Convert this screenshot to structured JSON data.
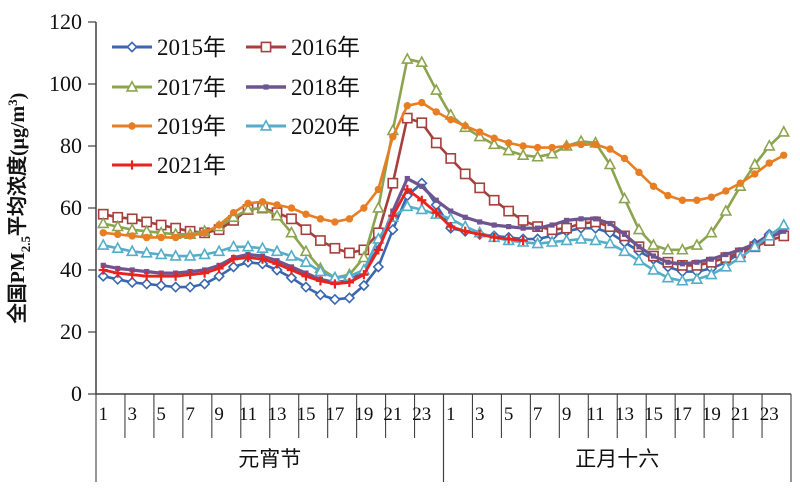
{
  "chart_data": {
    "type": "line",
    "title": "",
    "ylabel": {
      "prefix": "全国PM",
      "sub": "2.5",
      "mid": "平均浓度(μg/m",
      "sup": "3",
      "suffix": ")"
    },
    "ylim": [
      0,
      120
    ],
    "yticks": [
      0,
      20,
      40,
      60,
      80,
      100,
      120
    ],
    "x": {
      "group_size": 24,
      "tick_every": 2,
      "labeled_hours": [
        1,
        3,
        5,
        7,
        9,
        11,
        13,
        15,
        17,
        19,
        21,
        23
      ],
      "groups": [
        "元宵节",
        "正月十六"
      ]
    },
    "legend_position": "top-left-inside",
    "grid": false,
    "axis_color": "#404040",
    "text_color": "#111111",
    "series": [
      {
        "name": "2015年",
        "color": "#3A67AE",
        "marker": "diamond-open",
        "values": [
          38,
          37,
          36,
          35.5,
          35,
          34.5,
          34.5,
          35.5,
          38,
          41,
          42.5,
          42,
          40,
          37.5,
          34.5,
          32,
          30.5,
          31,
          35,
          41,
          53,
          64,
          68,
          61,
          53.5,
          52.5,
          51.5,
          51,
          50.5,
          50,
          50,
          51,
          52.5,
          53.5,
          53.5,
          52,
          49,
          46,
          43.5,
          41,
          39.5,
          39.5,
          40.5,
          42.5,
          45.5,
          48.5,
          51.5,
          53.5
        ]
      },
      {
        "name": "2016年",
        "color": "#A5403D",
        "marker": "square-open",
        "values": [
          58,
          57,
          56.5,
          55.5,
          54.5,
          53.5,
          52.5,
          52,
          53,
          56,
          59.5,
          60,
          58.5,
          56.5,
          53,
          49.5,
          47,
          45.5,
          46.5,
          52,
          68,
          89,
          87.5,
          81,
          76,
          71,
          66.5,
          62.5,
          59,
          56,
          54,
          53,
          53.5,
          55,
          55.5,
          54,
          51,
          47.5,
          44.5,
          42.5,
          41.5,
          41.5,
          42.5,
          44,
          45.5,
          47.5,
          49.5,
          51
        ]
      },
      {
        "name": "2017年",
        "color": "#8CA450",
        "marker": "triangle-open",
        "values": [
          55,
          54,
          53,
          52.5,
          52,
          51.5,
          51.5,
          52.5,
          54,
          57,
          59.5,
          60,
          57.5,
          52,
          46,
          40.5,
          37.5,
          38.5,
          44,
          60,
          85,
          108,
          107,
          98,
          90,
          86,
          83,
          80.5,
          78.5,
          77,
          76.5,
          77.5,
          80,
          81.5,
          81,
          74,
          63,
          53,
          48,
          46.5,
          46.5,
          48,
          52,
          59,
          67,
          74,
          80,
          84.5
        ]
      },
      {
        "name": "2018年",
        "color": "#6F5590",
        "marker": "small-square",
        "values": [
          41.5,
          40.5,
          40,
          39.5,
          39,
          39,
          39.5,
          40,
          41.5,
          44,
          45,
          44.5,
          43,
          41,
          39,
          37,
          36,
          36.5,
          39.5,
          47,
          59,
          69.5,
          67,
          62.5,
          59,
          57,
          55.5,
          54.5,
          54,
          53.5,
          53.5,
          54.5,
          56,
          56.5,
          56.5,
          55,
          51.5,
          47.5,
          44.5,
          42.5,
          42,
          42.5,
          43.5,
          45,
          46.5,
          48.5,
          50.5,
          52.5
        ]
      },
      {
        "name": "2019年",
        "color": "#E87E23",
        "marker": "circle-filled",
        "values": [
          52,
          51.5,
          51,
          50.5,
          50.5,
          50.5,
          51,
          52,
          54.5,
          58.5,
          61.5,
          62,
          61,
          60,
          58,
          56.5,
          55.5,
          56.5,
          60,
          66,
          83,
          93,
          94,
          91,
          88.5,
          86.5,
          84.5,
          82.5,
          81,
          80,
          79.5,
          79.5,
          80,
          80.5,
          80.5,
          79,
          76,
          71.5,
          67,
          64,
          62.5,
          62.5,
          63.5,
          65.5,
          68,
          71,
          74.5,
          77
        ]
      },
      {
        "name": "2020年",
        "color": "#54ADC9",
        "marker": "triangle-open",
        "values": [
          48,
          47,
          46,
          45.5,
          45,
          44.5,
          44.5,
          45,
          46,
          47.5,
          47.5,
          47,
          46,
          44.5,
          42.5,
          39.5,
          37.5,
          38,
          40,
          50,
          57,
          60.5,
          59.5,
          58,
          56.5,
          54,
          52,
          50.5,
          49.5,
          49,
          48.5,
          49,
          49.5,
          50,
          49.5,
          48.5,
          46,
          43,
          40,
          37.5,
          36.5,
          37,
          38.5,
          41,
          44,
          47.5,
          51,
          54.5
        ]
      },
      {
        "name": "2021年",
        "color": "#E8231F",
        "marker": "plus",
        "values": [
          40,
          39,
          38.5,
          38,
          38,
          38,
          38.5,
          39,
          40.5,
          43.5,
          44,
          43.5,
          42,
          40,
          38,
          36.5,
          35.5,
          36,
          38.5,
          46.5,
          57.5,
          66,
          62.5,
          58.5,
          54,
          52.5,
          51.5,
          50.5,
          50,
          49.5
        ]
      }
    ]
  }
}
